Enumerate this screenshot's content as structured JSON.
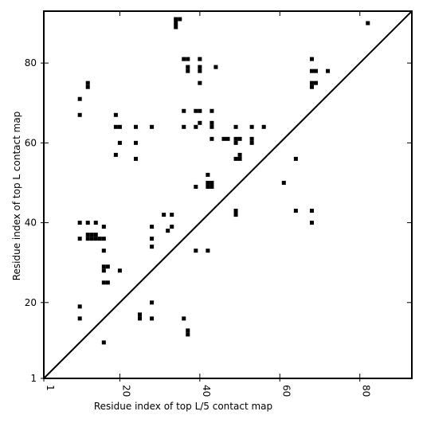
{
  "chart_data": {
    "type": "scatter",
    "title": "",
    "xlabel": "Residue index of top L/5 contact map",
    "ylabel": "Residue index of top L contact map",
    "xlim": [
      1,
      93
    ],
    "ylim": [
      1,
      93
    ],
    "xticks": [
      1,
      20,
      40,
      60,
      80
    ],
    "yticks": [
      1,
      20,
      40,
      60,
      80
    ],
    "xtick_labels": [
      "1",
      "20",
      "40",
      "60",
      "80"
    ],
    "ytick_labels": [
      "1",
      "20",
      "40",
      "60",
      "80"
    ],
    "grid": false,
    "diagonal": true,
    "marker": "square",
    "color": "#000000",
    "upper_triangle_series": "top L contact map",
    "lower_triangle_series": "top L/5 contact map",
    "points": [
      [
        10,
        71
      ],
      [
        10,
        67
      ],
      [
        12,
        75
      ],
      [
        12,
        74
      ],
      [
        19,
        67
      ],
      [
        19,
        64
      ],
      [
        20,
        64
      ],
      [
        19,
        57
      ],
      [
        20,
        60
      ],
      [
        24,
        64
      ],
      [
        24,
        60
      ],
      [
        24,
        56
      ],
      [
        28,
        64
      ],
      [
        34,
        91
      ],
      [
        34,
        90
      ],
      [
        34,
        89
      ],
      [
        35,
        91
      ],
      [
        36,
        81
      ],
      [
        37,
        81
      ],
      [
        37,
        79
      ],
      [
        37,
        78
      ],
      [
        40,
        81
      ],
      [
        40,
        79
      ],
      [
        40,
        78
      ],
      [
        40,
        75
      ],
      [
        44,
        79
      ],
      [
        36,
        68
      ],
      [
        36,
        64
      ],
      [
        39,
        68
      ],
      [
        40,
        68
      ],
      [
        39,
        64
      ],
      [
        40,
        65
      ],
      [
        43,
        68
      ],
      [
        43,
        65
      ],
      [
        43,
        64
      ],
      [
        43,
        61
      ],
      [
        46,
        61
      ],
      [
        47,
        61
      ],
      [
        49,
        64
      ],
      [
        49,
        61
      ],
      [
        49,
        60
      ],
      [
        50,
        61
      ],
      [
        49,
        56
      ],
      [
        50,
        57
      ],
      [
        50,
        56
      ],
      [
        53,
        64
      ],
      [
        53,
        61
      ],
      [
        53,
        60
      ],
      [
        56,
        64
      ],
      [
        42,
        52
      ],
      [
        42,
        50
      ],
      [
        42,
        49
      ],
      [
        43,
        50
      ],
      [
        43,
        49
      ],
      [
        39,
        49
      ],
      [
        49,
        43
      ],
      [
        49,
        42
      ],
      [
        61,
        50
      ],
      [
        64,
        56
      ],
      [
        64,
        43
      ],
      [
        68,
        81
      ],
      [
        68,
        78
      ],
      [
        69,
        78
      ],
      [
        68,
        75
      ],
      [
        68,
        74
      ],
      [
        69,
        75
      ],
      [
        72,
        78
      ],
      [
        82,
        90
      ],
      [
        68,
        43
      ],
      [
        68,
        40
      ],
      [
        10,
        40
      ],
      [
        12,
        40
      ],
      [
        14,
        40
      ],
      [
        10,
        36
      ],
      [
        12,
        37
      ],
      [
        13,
        37
      ],
      [
        14,
        37
      ],
      [
        12,
        36
      ],
      [
        13,
        36
      ],
      [
        14,
        36
      ],
      [
        15,
        36
      ],
      [
        16,
        36
      ],
      [
        16,
        39
      ],
      [
        16,
        33
      ],
      [
        16,
        29
      ],
      [
        17,
        29
      ],
      [
        16,
        28
      ],
      [
        16,
        25
      ],
      [
        17,
        25
      ],
      [
        20,
        28
      ],
      [
        28,
        39
      ],
      [
        28,
        36
      ],
      [
        28,
        34
      ],
      [
        31,
        42
      ],
      [
        33,
        42
      ],
      [
        33,
        39
      ],
      [
        32,
        38
      ],
      [
        39,
        33
      ],
      [
        42,
        33
      ],
      [
        10,
        19
      ],
      [
        10,
        16
      ],
      [
        16,
        10
      ],
      [
        25,
        17
      ],
      [
        25,
        16
      ],
      [
        28,
        20
      ],
      [
        28,
        16
      ],
      [
        36,
        16
      ],
      [
        37,
        13
      ],
      [
        37,
        12
      ]
    ]
  }
}
